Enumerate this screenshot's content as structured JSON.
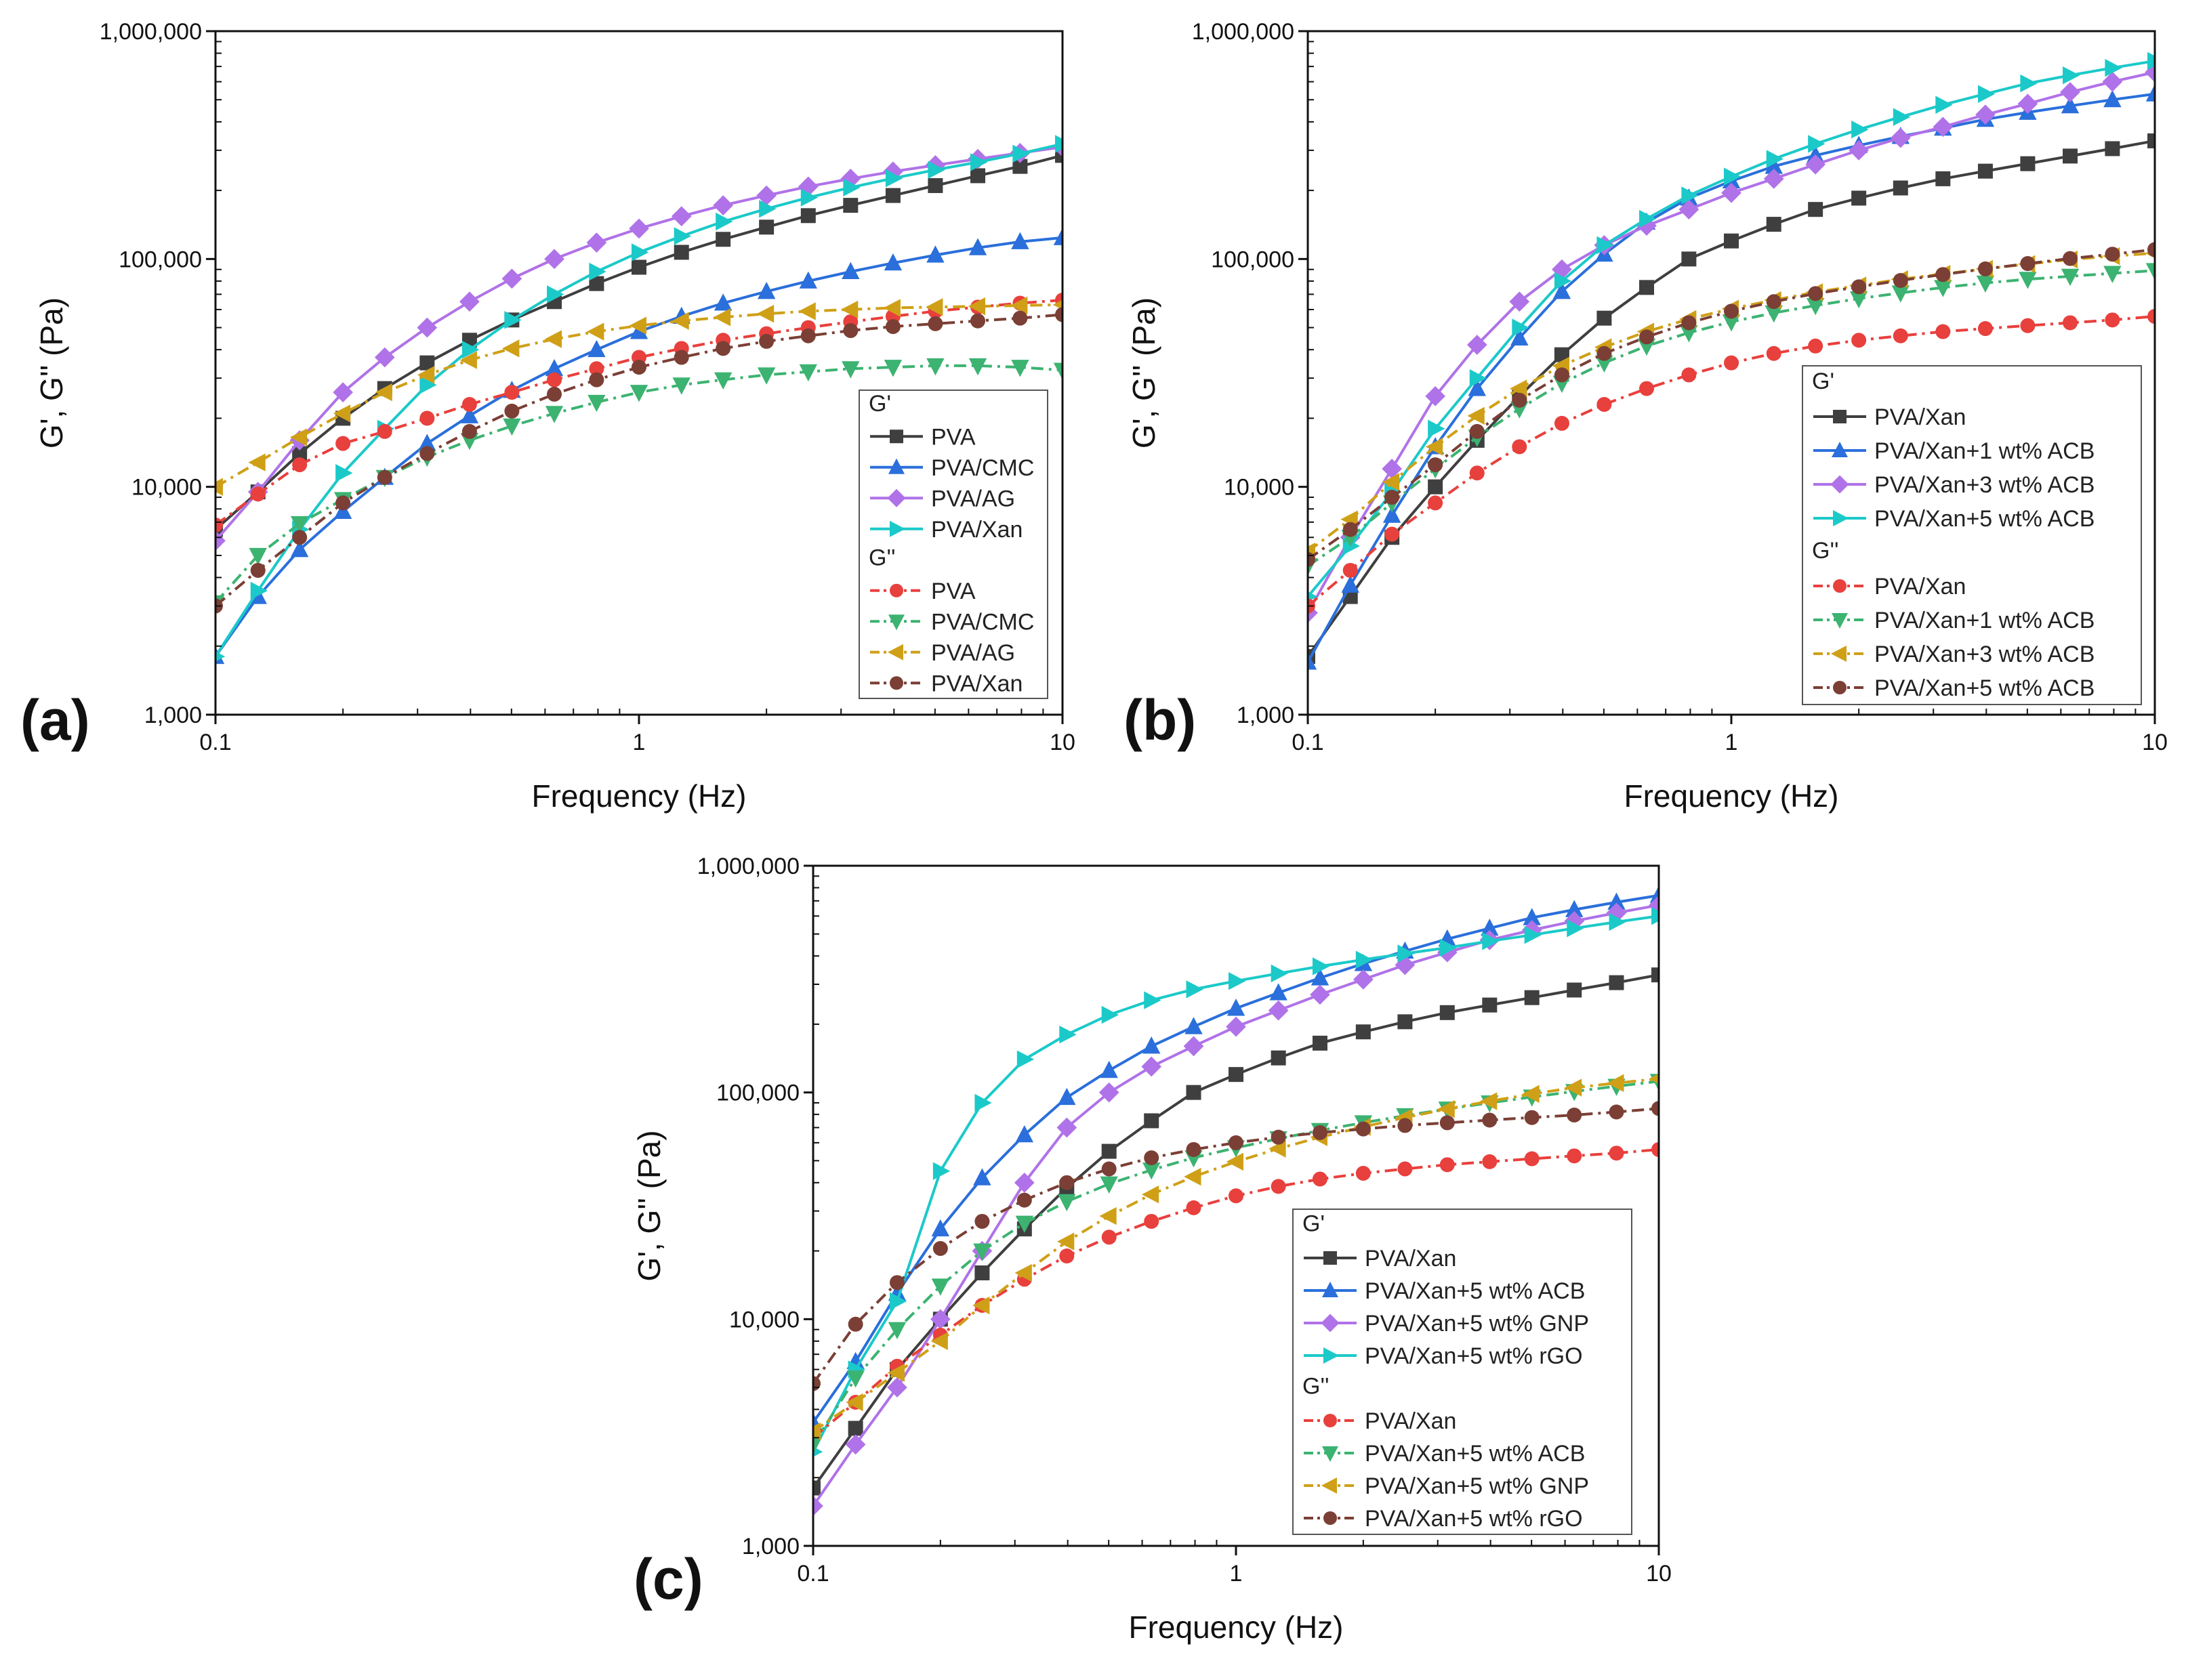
{
  "figure": {
    "colors": {
      "G1": "#3f3f3f",
      "G2": "#2a6fdb",
      "G3": "#b072e8",
      "G4": "#1cc9c9",
      "V1": "#e8403d",
      "V2": "#3cb371",
      "V3": "#cfa017",
      "V4": "#7b3f35"
    }
  },
  "chart_data": [
    {
      "type": "line",
      "panel_label": "(a)",
      "xlabel": "Frequency (Hz)",
      "ylabel": "G', G'' (Pa)",
      "xscale": "log",
      "yscale": "log",
      "xlim": [
        0.1,
        10
      ],
      "ylim": [
        1000,
        1000000
      ],
      "x_ticks": [
        0.1,
        1,
        10
      ],
      "x_tick_labels": [
        "0.1",
        "1",
        "10"
      ],
      "y_ticks": [
        1000,
        10000,
        100000,
        1000000
      ],
      "y_tick_labels": [
        "1,000",
        "10,000",
        "100,000",
        "1,000,000"
      ],
      "legend_position": "right-middle",
      "legend_groups": [
        "G'",
        "G''"
      ],
      "x": [
        0.1,
        0.126,
        0.158,
        0.2,
        0.251,
        0.316,
        0.398,
        0.501,
        0.631,
        0.794,
        1,
        1.26,
        1.58,
        2,
        2.51,
        3.16,
        3.98,
        5.01,
        6.31,
        7.94,
        10
      ],
      "series": [
        {
          "name": "PVA",
          "group": 0,
          "color_key": "G1",
          "marker": "square",
          "dash": "solid",
          "values": [
            6500,
            9500,
            14000,
            20000,
            27000,
            35000,
            44000,
            54000,
            65000,
            78000,
            92000,
            107000,
            122000,
            138000,
            155000,
            172000,
            190000,
            210000,
            232000,
            255000,
            285000
          ]
        },
        {
          "name": "PVA/CMC",
          "group": 0,
          "color_key": "G2",
          "marker": "triangle-up",
          "dash": "solid",
          "values": [
            1800,
            3300,
            5300,
            7800,
            11000,
            15500,
            20500,
            26500,
            33000,
            40000,
            48000,
            56000,
            64000,
            72000,
            80000,
            88000,
            96000,
            104000,
            112000,
            119000,
            124000
          ]
        },
        {
          "name": "PVA/AG",
          "group": 0,
          "color_key": "G3",
          "marker": "diamond",
          "dash": "solid",
          "values": [
            5800,
            9500,
            16000,
            26000,
            37000,
            50000,
            65000,
            82000,
            100000,
            118000,
            136000,
            154000,
            172000,
            190000,
            208000,
            225000,
            242000,
            258000,
            275000,
            292000,
            310000
          ]
        },
        {
          "name": "PVA/Xan",
          "group": 0,
          "color_key": "G4",
          "marker": "triangle-right",
          "dash": "solid",
          "values": [
            1800,
            3500,
            6500,
            11500,
            18000,
            28000,
            40000,
            54000,
            70000,
            88000,
            107000,
            126000,
            146000,
            166000,
            186000,
            206000,
            226000,
            246000,
            266000,
            290000,
            320000
          ]
        },
        {
          "name": "PVA",
          "group": 1,
          "color_key": "V1",
          "marker": "circle",
          "dash": "dashdot",
          "values": [
            6800,
            9300,
            12500,
            15500,
            17500,
            20000,
            23000,
            26000,
            29500,
            33000,
            37000,
            40500,
            44000,
            47000,
            50000,
            53000,
            56000,
            59000,
            61500,
            64000,
            66000
          ]
        },
        {
          "name": "PVA/CMC",
          "group": 1,
          "color_key": "V2",
          "marker": "triangle-down",
          "dash": "dashdot",
          "values": [
            3100,
            5000,
            6900,
            8800,
            11000,
            13500,
            16000,
            18500,
            21000,
            23500,
            26000,
            28000,
            29500,
            31000,
            32000,
            33000,
            33500,
            34000,
            34000,
            33500,
            32500
          ]
        },
        {
          "name": "PVA/AG",
          "group": 1,
          "color_key": "V3",
          "marker": "triangle-left",
          "dash": "dashdot",
          "values": [
            10000,
            12800,
            16500,
            21000,
            26000,
            31000,
            36000,
            40500,
            44500,
            48000,
            51000,
            53500,
            55500,
            57500,
            59000,
            60000,
            61000,
            61500,
            62000,
            62500,
            63000
          ]
        },
        {
          "name": "PVA/Xan",
          "group": 1,
          "color_key": "V4",
          "marker": "circle",
          "dash": "dashdot",
          "values": [
            3000,
            4300,
            6000,
            8500,
            11000,
            14000,
            17500,
            21500,
            25500,
            29500,
            33500,
            37000,
            40500,
            43500,
            46000,
            48500,
            50500,
            52000,
            53500,
            55000,
            57000
          ]
        }
      ]
    },
    {
      "type": "line",
      "panel_label": "(b)",
      "xlabel": "Frequency (Hz)",
      "ylabel": "G', G'' (Pa)",
      "xscale": "log",
      "yscale": "log",
      "xlim": [
        0.1,
        10
      ],
      "ylim": [
        1000,
        1000000
      ],
      "x_ticks": [
        0.1,
        1,
        10
      ],
      "x_tick_labels": [
        "0.1",
        "1",
        "10"
      ],
      "y_ticks": [
        1000,
        10000,
        100000,
        1000000
      ],
      "y_tick_labels": [
        "1,000",
        "10,000",
        "100,000",
        "1,000,000"
      ],
      "legend_position": "bottom-right",
      "legend_groups": [
        "G'",
        "G''"
      ],
      "x": [
        0.1,
        0.126,
        0.158,
        0.2,
        0.251,
        0.316,
        0.398,
        0.501,
        0.631,
        0.794,
        1,
        1.26,
        1.58,
        2,
        2.51,
        3.16,
        3.98,
        5.01,
        6.31,
        7.94,
        10
      ],
      "series": [
        {
          "name": "PVA/Xan",
          "group": 0,
          "color_key": "G1",
          "marker": "square",
          "dash": "solid",
          "values": [
            1800,
            3300,
            6000,
            10000,
            16000,
            25000,
            38000,
            55000,
            75000,
            100000,
            120000,
            142000,
            165000,
            185000,
            205000,
            225000,
            243000,
            262000,
            283000,
            305000,
            330000
          ]
        },
        {
          "name": "PVA/Xan+1 wt% ACB",
          "group": 0,
          "color_key": "G2",
          "marker": "triangle-up",
          "dash": "solid",
          "values": [
            1700,
            3700,
            7500,
            15000,
            27000,
            45000,
            72000,
            105000,
            145000,
            185000,
            220000,
            255000,
            285000,
            315000,
            345000,
            375000,
            410000,
            440000,
            470000,
            500000,
            530000
          ]
        },
        {
          "name": "PVA/Xan+3 wt% ACB",
          "group": 0,
          "color_key": "G3",
          "marker": "diamond",
          "dash": "solid",
          "values": [
            2800,
            6000,
            12000,
            25000,
            42000,
            65000,
            90000,
            115000,
            140000,
            165000,
            195000,
            225000,
            260000,
            300000,
            340000,
            380000,
            430000,
            480000,
            540000,
            600000,
            660000
          ]
        },
        {
          "name": "PVA/Xan+5 wt% ACB",
          "group": 0,
          "color_key": "G4",
          "marker": "triangle-right",
          "dash": "solid",
          "values": [
            3300,
            5500,
            9500,
            18000,
            30000,
            50000,
            80000,
            115000,
            150000,
            190000,
            230000,
            275000,
            320000,
            370000,
            420000,
            475000,
            530000,
            590000,
            640000,
            690000,
            740000
          ]
        },
        {
          "name": "PVA/Xan",
          "group": 1,
          "color_key": "V1",
          "marker": "circle",
          "dash": "dashdot",
          "values": [
            3000,
            4300,
            6200,
            8500,
            11500,
            15000,
            19000,
            23000,
            27000,
            31000,
            35000,
            38500,
            41500,
            44000,
            46000,
            48000,
            49500,
            51000,
            52500,
            54000,
            56000
          ]
        },
        {
          "name": "PVA/Xan+1 wt% ACB",
          "group": 1,
          "color_key": "V2",
          "marker": "triangle-down",
          "dash": "dashdot",
          "values": [
            4500,
            6000,
            8500,
            12000,
            16500,
            22000,
            28500,
            35000,
            41500,
            47500,
            53000,
            58000,
            62500,
            67000,
            71000,
            75000,
            78500,
            81500,
            84000,
            86500,
            89000
          ]
        },
        {
          "name": "PVA/Xan+3 wt% ACB",
          "group": 1,
          "color_key": "V3",
          "marker": "triangle-left",
          "dash": "dashdot",
          "values": [
            5200,
            7200,
            10500,
            15000,
            20500,
            27000,
            34000,
            41000,
            48000,
            54500,
            60500,
            66000,
            71500,
            76500,
            81500,
            86000,
            90500,
            95000,
            99500,
            103000,
            106000
          ]
        },
        {
          "name": "PVA/Xan+5 wt% ACB",
          "group": 1,
          "color_key": "V4",
          "marker": "circle",
          "dash": "dashdot",
          "values": [
            4800,
            6500,
            9000,
            12500,
            17500,
            24000,
            31000,
            38500,
            45500,
            52500,
            59000,
            65000,
            70500,
            75500,
            80500,
            85500,
            90500,
            95500,
            100500,
            105000,
            110000
          ]
        }
      ]
    },
    {
      "type": "line",
      "panel_label": "(c)",
      "xlabel": "Frequency (Hz)",
      "ylabel": "G', G'' (Pa)",
      "xscale": "log",
      "yscale": "log",
      "xlim": [
        0.1,
        10
      ],
      "ylim": [
        1000,
        1000000
      ],
      "x_ticks": [
        0.1,
        1,
        10
      ],
      "x_tick_labels": [
        "0.1",
        "1",
        "10"
      ],
      "y_ticks": [
        1000,
        10000,
        100000,
        1000000
      ],
      "y_tick_labels": [
        "1,000",
        "10,000",
        "100,000",
        "1,000,000"
      ],
      "legend_position": "bottom-right",
      "legend_groups": [
        "G'",
        "G''"
      ],
      "x": [
        0.1,
        0.126,
        0.158,
        0.2,
        0.251,
        0.316,
        0.398,
        0.501,
        0.631,
        0.794,
        1,
        1.26,
        1.58,
        2,
        2.51,
        3.16,
        3.98,
        5.01,
        6.31,
        7.94,
        10
      ],
      "series": [
        {
          "name": "PVA/Xan",
          "group": 0,
          "color_key": "G1",
          "marker": "square",
          "dash": "solid",
          "values": [
            1800,
            3300,
            6000,
            10000,
            16000,
            25000,
            38000,
            55000,
            75000,
            100000,
            120000,
            142000,
            165000,
            185000,
            205000,
            225000,
            243000,
            262000,
            283000,
            305000,
            330000
          ]
        },
        {
          "name": "PVA/Xan+5 wt% ACB",
          "group": 0,
          "color_key": "G2",
          "marker": "triangle-up",
          "dash": "solid",
          "values": [
            3500,
            6500,
            13000,
            25000,
            42000,
            65000,
            95000,
            125000,
            160000,
            195000,
            235000,
            275000,
            320000,
            370000,
            420000,
            475000,
            530000,
            590000,
            640000,
            690000,
            740000
          ]
        },
        {
          "name": "PVA/Xan+5 wt% GNP",
          "group": 0,
          "color_key": "G3",
          "marker": "diamond",
          "dash": "solid",
          "values": [
            1500,
            2800,
            5000,
            10000,
            20000,
            40000,
            70000,
            100000,
            130000,
            160000,
            195000,
            230000,
            270000,
            315000,
            365000,
            415000,
            470000,
            520000,
            570000,
            620000,
            670000
          ]
        },
        {
          "name": "PVA/Xan+5 wt% rGO",
          "group": 0,
          "color_key": "G4",
          "marker": "triangle-right",
          "dash": "solid",
          "values": [
            2600,
            6000,
            12000,
            45000,
            90000,
            140000,
            180000,
            220000,
            255000,
            285000,
            310000,
            335000,
            360000,
            385000,
            410000,
            435000,
            465000,
            495000,
            530000,
            565000,
            600000
          ]
        },
        {
          "name": "PVA/Xan",
          "group": 1,
          "color_key": "V1",
          "marker": "circle",
          "dash": "dashdot",
          "values": [
            3000,
            4300,
            6200,
            8500,
            11500,
            15000,
            19000,
            23000,
            27000,
            31000,
            35000,
            38500,
            41500,
            44000,
            46000,
            48000,
            49500,
            51000,
            52500,
            54000,
            56000
          ]
        },
        {
          "name": "PVA/Xan+5 wt% ACB",
          "group": 1,
          "color_key": "V2",
          "marker": "triangle-down",
          "dash": "dashdot",
          "values": [
            2800,
            5500,
            9000,
            14000,
            20000,
            26500,
            33000,
            39500,
            45500,
            51500,
            57000,
            62500,
            68000,
            73500,
            79000,
            84500,
            90000,
            95500,
            101000,
            106500,
            112000
          ]
        },
        {
          "name": "PVA/Xan+5 wt% GNP",
          "group": 1,
          "color_key": "V3",
          "marker": "triangle-left",
          "dash": "dashdot",
          "values": [
            3200,
            4300,
            5800,
            8000,
            11500,
            16000,
            22000,
            28500,
            35500,
            42500,
            49500,
            56500,
            63500,
            70500,
            77500,
            84500,
            91500,
            98500,
            105000,
            110000,
            115000
          ]
        },
        {
          "name": "PVA/Xan+5 wt% rGO",
          "group": 1,
          "color_key": "V4",
          "marker": "circle",
          "dash": "dashdot",
          "values": [
            5200,
            9500,
            14500,
            20500,
            27000,
            33500,
            40000,
            46000,
            51500,
            56000,
            60000,
            63500,
            66500,
            69000,
            71500,
            73500,
            75500,
            77500,
            79500,
            82000,
            85000
          ]
        }
      ]
    }
  ]
}
